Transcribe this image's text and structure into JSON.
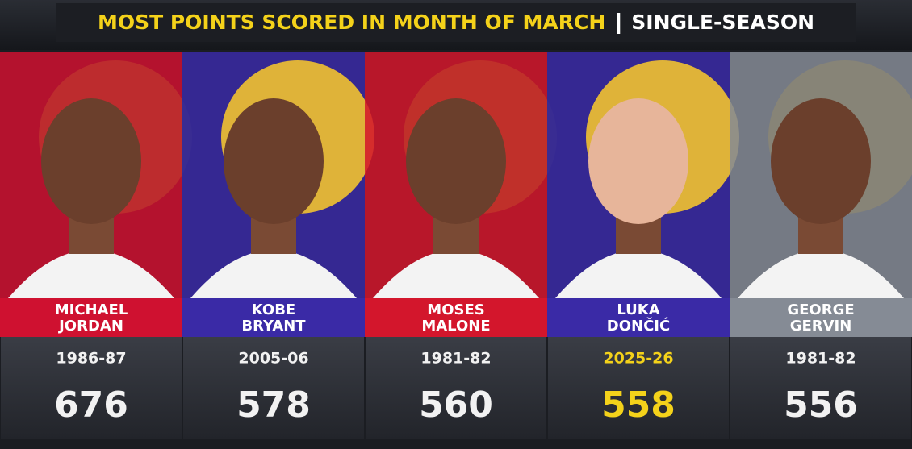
{
  "header": {
    "title": "MOST POINTS SCORED IN MONTH OF MARCH",
    "subtitle": "SINGLE-SEASON"
  },
  "players": [
    {
      "first_name": "MICHAEL",
      "last_name": "JORDAN",
      "season": "1986-87",
      "points": 676,
      "color": "#cf1130",
      "highlight": false
    },
    {
      "first_name": "KOBE",
      "last_name": "BRYANT",
      "season": "2005-06",
      "points": 578,
      "color": "#3a2aa6",
      "highlight": false
    },
    {
      "first_name": "MOSES",
      "last_name": "MALONE",
      "season": "1981-82",
      "points": 560,
      "color": "#d3162c",
      "highlight": false
    },
    {
      "first_name": "LUKA",
      "last_name": "DONČIĆ",
      "season": "2025-26",
      "points": 558,
      "color": "#3a2aa6",
      "highlight": true
    },
    {
      "first_name": "GEORGE",
      "last_name": "GERVIN",
      "season": "1981-82",
      "points": 556,
      "color": "#858b95",
      "highlight": false
    }
  ]
}
